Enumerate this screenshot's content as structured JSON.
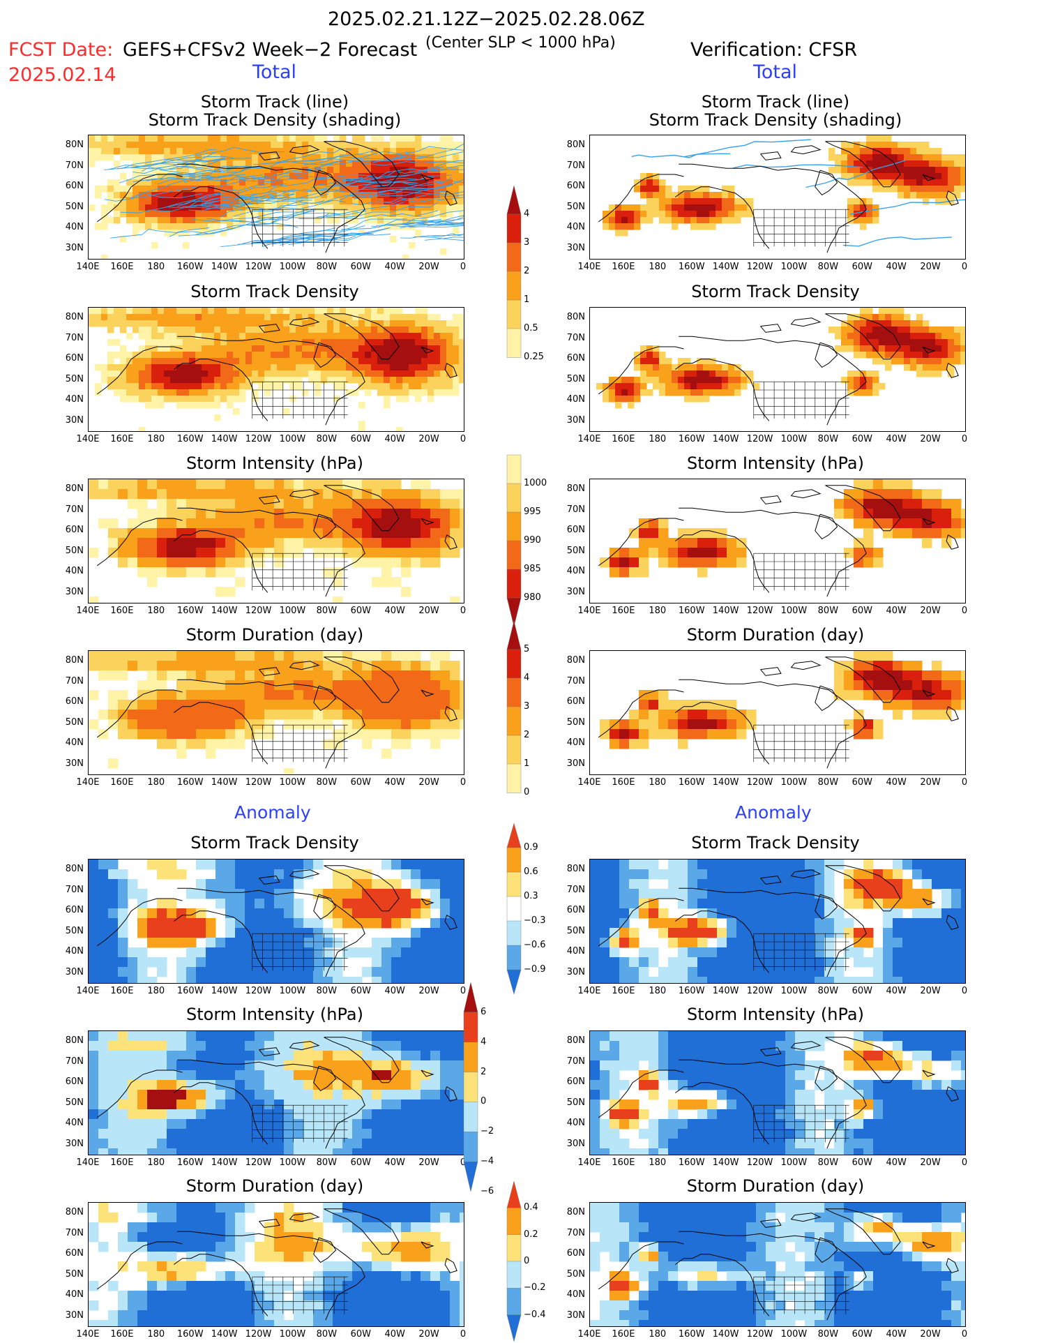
{
  "header": {
    "period": "2025.02.21.12Z−2025.02.28.06Z",
    "fcst_label": "FCST Date:",
    "fcst_date": "2025.02.14",
    "model": "GEFS+CFSv2 Week−2 Forecast",
    "criterion": "(Center SLP < 1000 hPa)",
    "verification": "Verification: CFSR"
  },
  "sections": {
    "total_left": "Total",
    "total_right": "Total",
    "anomaly_left": "Anomaly",
    "anomaly_right": "Anomaly"
  },
  "panel_titles": {
    "track_line": "Storm Track (line)",
    "track_shading": "Storm Track Density (shading)",
    "density": "Storm Track Density",
    "intensity": "Storm Intensity (hPa)",
    "duration": "Storm Duration (day)"
  },
  "axes": {
    "lat_labels": [
      "80N",
      "70N",
      "60N",
      "50N",
      "40N",
      "30N"
    ],
    "lon_labels": [
      "140E",
      "160E",
      "180",
      "160W",
      "140W",
      "120W",
      "100W",
      "80W",
      "60W",
      "40W",
      "20W",
      "0"
    ]
  },
  "colorbars": {
    "density_total": {
      "labels": [
        "4",
        "3",
        "2",
        "1",
        "0.5",
        "0.25"
      ],
      "colors": [
        "#a50f0f",
        "#d8200c",
        "#f26a18",
        "#f9a11a",
        "#fbd25c",
        "#fff3a8"
      ]
    },
    "intensity_total": {
      "labels": [
        "1000",
        "995",
        "990",
        "985",
        "980"
      ],
      "colors": [
        "#fff3a8",
        "#fbd25c",
        "#f9a11a",
        "#f26a18",
        "#d8200c",
        "#a50f0f"
      ]
    },
    "duration_total": {
      "labels": [
        "5",
        "4",
        "3",
        "2",
        "1",
        "0"
      ],
      "colors": [
        "#a50f0f",
        "#d8200c",
        "#f26a18",
        "#f9a11a",
        "#fbd25c",
        "#fff3a8"
      ]
    },
    "density_anomaly": {
      "labels": [
        "0.9",
        "0.6",
        "0.3",
        "−0.3",
        "−0.6",
        "−0.9"
      ],
      "colors": [
        "#e8401c",
        "#f9a11a",
        "#fde27a",
        "#ffffff",
        "#b8e6f8",
        "#5aa8e8",
        "#1f6fd6"
      ]
    },
    "intensity_anomaly": {
      "labels": [
        "6",
        "4",
        "2",
        "0",
        "−2",
        "−4",
        "−6"
      ],
      "colors": [
        "#a50f0f",
        "#e8401c",
        "#f9a11a",
        "#fde27a",
        "#b8e6f8",
        "#5aa8e8",
        "#1f6fd6"
      ]
    },
    "duration_anomaly": {
      "labels": [
        "0.4",
        "0.2",
        "0",
        "−0.2",
        "−0.4"
      ],
      "colors": [
        "#e8401c",
        "#f9a11a",
        "#fde27a",
        "#b8e6f8",
        "#5aa8e8",
        "#1f6fd6"
      ]
    }
  },
  "palette": {
    "track_lines": "#3aa0e8",
    "coast": "#000000",
    "title_red": "#ff2a2a",
    "section_blue": "#2b3fff"
  }
}
